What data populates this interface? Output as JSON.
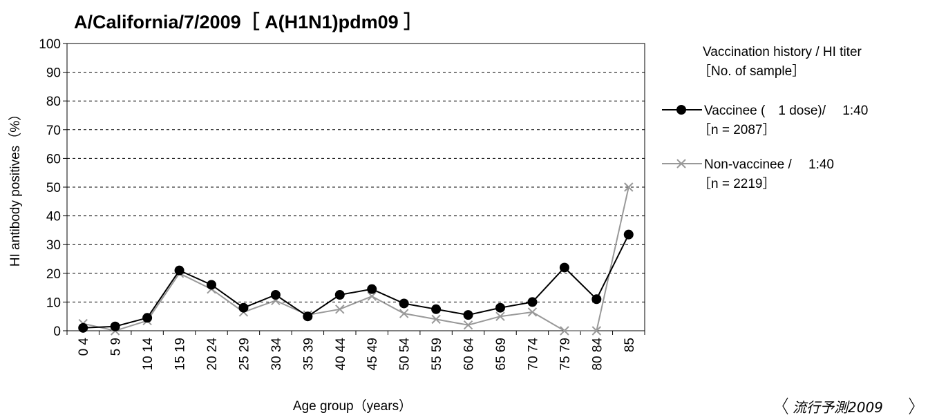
{
  "chart_data": {
    "type": "line",
    "title": "A/California/7/2009［ A(H1N1)pdm09 ］",
    "xlabel": "Age group（years）",
    "ylabel": "HI antibody positives（%）",
    "ylim": [
      0,
      100
    ],
    "yticks": [
      "0",
      "10",
      "20",
      "30",
      "40",
      "50",
      "60",
      "70",
      "80",
      "90",
      "100"
    ],
    "grid": "horizontal dashed",
    "legend_position": "right",
    "categories": [
      "0 4",
      "5 9",
      "10 14",
      "15 19",
      "20 24",
      "25 29",
      "30 34",
      "35 39",
      "40 44",
      "45 49",
      "50 54",
      "55 59",
      "60 64",
      "65 69",
      "70 74",
      "75 79",
      "80 84",
      "85"
    ],
    "legend_title_1": "Vaccination history / HI titer",
    "legend_title_2": "［No. of sample］",
    "series": [
      {
        "label_1": "Vaccinee (　1 dose)/　 1:40",
        "label_2": "［n = 2087］",
        "color": "#000000",
        "marker": "circle",
        "values": [
          1,
          1.5,
          4.5,
          21,
          16,
          8,
          12.5,
          5,
          12.5,
          14.5,
          9.5,
          7.5,
          5.5,
          8,
          10,
          22,
          11,
          33.5
        ]
      },
      {
        "label_1": "Non-vaccinee /　 1:40",
        "label_2": "［n = 2219］",
        "color": "#999999",
        "marker": "x",
        "values": [
          2.5,
          0,
          3.5,
          20,
          14.5,
          6.5,
          10.5,
          5.5,
          7.5,
          12,
          6,
          4,
          2,
          5,
          6.5,
          0,
          0,
          50
        ]
      }
    ]
  },
  "watermark": "流行予測2009"
}
